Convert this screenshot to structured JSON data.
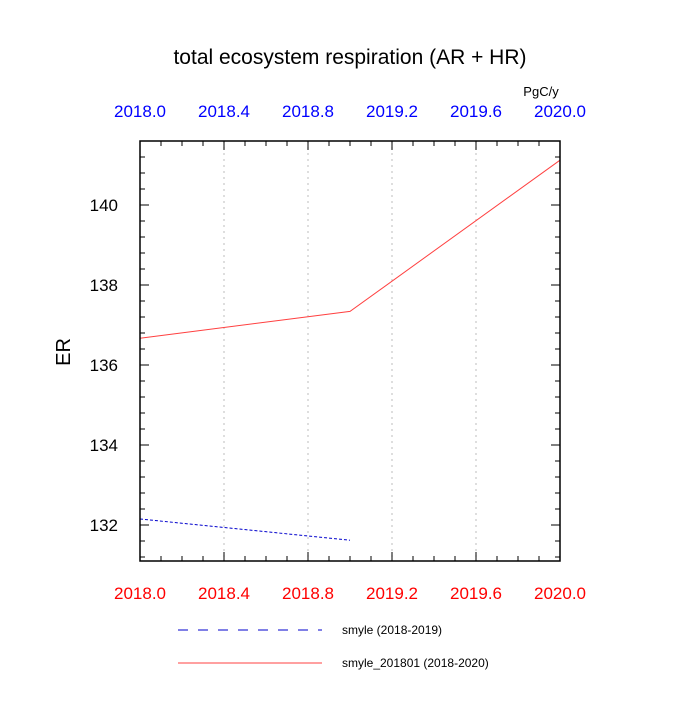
{
  "chart_data": {
    "type": "line",
    "title": "total ecosystem respiration (AR + HR)",
    "units": "PgC/y",
    "ylabel": "ER",
    "xlabel": "",
    "xlim": [
      2018.0,
      2020.0
    ],
    "ylim": [
      131.1,
      141.6
    ],
    "x_ticks": [
      2018.0,
      2018.4,
      2018.8,
      2019.2,
      2019.6,
      2020.0
    ],
    "x_tick_labels": [
      "2018.0",
      "2018.4",
      "2018.8",
      "2019.2",
      "2019.6",
      "2020.0"
    ],
    "y_ticks": [
      132,
      134,
      136,
      138,
      140
    ],
    "y_tick_labels": [
      "132",
      "134",
      "136",
      "138",
      "140"
    ],
    "grid": "vertical dotted at x ticks",
    "legend_position": "bottom",
    "colors": {
      "top_axis_labels": "#0000ff",
      "bottom_axis_labels": "#ff0000",
      "grid": "#c8c8c8",
      "axis": "#000000"
    },
    "series": [
      {
        "name": "smyle (2018-2019)",
        "color": "#0000cc",
        "dash": "dashed",
        "x": [
          2018.0,
          2019.0
        ],
        "y": [
          132.15,
          131.62
        ]
      },
      {
        "name": "smyle_201801 (2018-2020)",
        "color": "#ff4040",
        "dash": "solid",
        "x": [
          2018.0,
          2019.0,
          2020.0
        ],
        "y": [
          136.67,
          137.34,
          141.12
        ]
      }
    ]
  }
}
